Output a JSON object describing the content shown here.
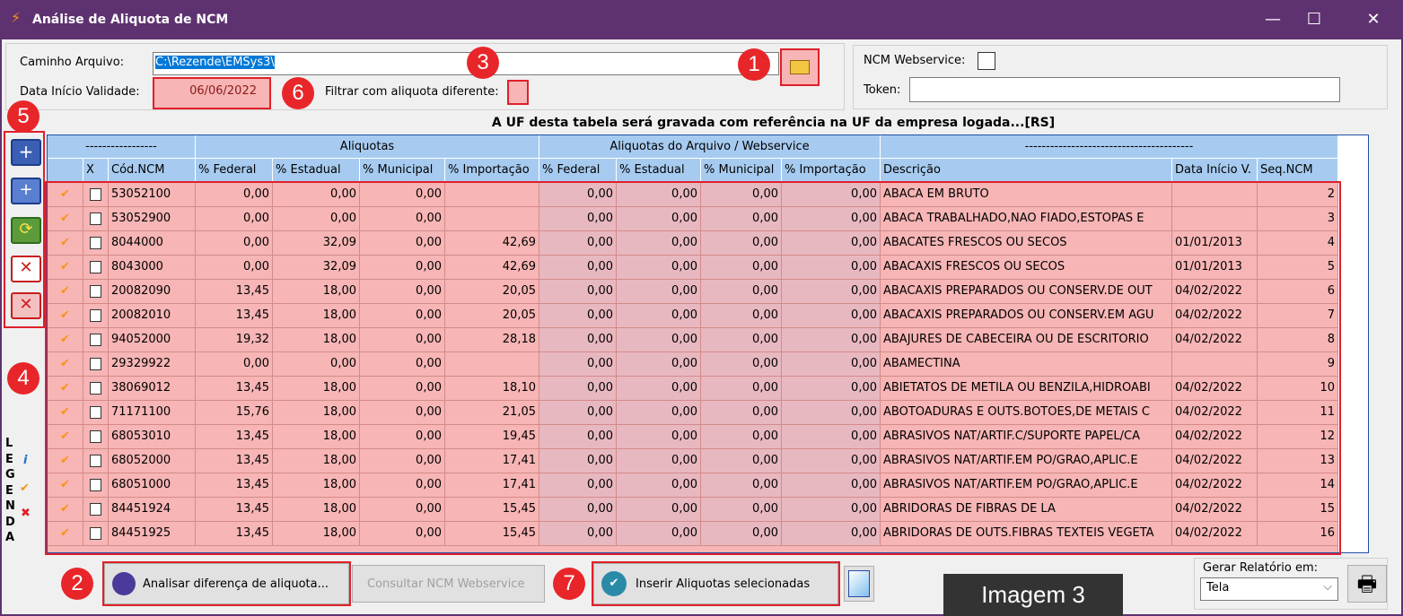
{
  "window": {
    "title": "Análise de Aliquota de NCM",
    "minimize": "—",
    "maximize": "☐",
    "close": "✕"
  },
  "form": {
    "path_label": "Caminho Arquivo:",
    "path_value": "C:\\Rezende\\EMSys3\\",
    "validity_label": "Data Início Validade:",
    "validity_value": "06/06/2022",
    "filter_label": "Filtrar com aliquota diferente:",
    "ncm_ws_label": "NCM Webservice:",
    "token_label": "Token:",
    "token_value": ""
  },
  "notice": "A UF desta tabela será gravada com referência na UF da empresa logada...[RS]",
  "grid": {
    "group_headers": [
      "-----------------",
      "Aliquotas",
      "Aliquotas do Arquivo / Webservice",
      "----------------------------------------"
    ],
    "columns": [
      "",
      "X",
      "Cód.NCM",
      "% Federal",
      "% Estadual",
      "% Municipal",
      "% Importação",
      "% Federal",
      "% Estadual",
      "% Municipal",
      "% Importação",
      "Descrição",
      "Data Início V.",
      "Seq.NCM"
    ],
    "rows": [
      [
        "53052100",
        "0,00",
        "0,00",
        "0,00",
        "",
        "0,00",
        "0,00",
        "0,00",
        "0,00",
        "ABACA EM BRUTO",
        "",
        "2"
      ],
      [
        "53052900",
        "0,00",
        "0,00",
        "0,00",
        "",
        "0,00",
        "0,00",
        "0,00",
        "0,00",
        "ABACA TRABALHADO,NAO FIADO,ESTOPAS E",
        "",
        "3"
      ],
      [
        "8044000",
        "0,00",
        "32,09",
        "0,00",
        "42,69",
        "0,00",
        "0,00",
        "0,00",
        "0,00",
        "ABACATES FRESCOS OU SECOS",
        "01/01/2013",
        "4"
      ],
      [
        "8043000",
        "0,00",
        "32,09",
        "0,00",
        "42,69",
        "0,00",
        "0,00",
        "0,00",
        "0,00",
        "ABACAXIS FRESCOS OU SECOS",
        "01/01/2013",
        "5"
      ],
      [
        "20082090",
        "13,45",
        "18,00",
        "0,00",
        "20,05",
        "0,00",
        "0,00",
        "0,00",
        "0,00",
        "ABACAXIS PREPARADOS OU CONSERV.DE OUT",
        "04/02/2022",
        "6"
      ],
      [
        "20082010",
        "13,45",
        "18,00",
        "0,00",
        "20,05",
        "0,00",
        "0,00",
        "0,00",
        "0,00",
        "ABACAXIS PREPARADOS OU CONSERV.EM AGU",
        "04/02/2022",
        "7"
      ],
      [
        "94052000",
        "19,32",
        "18,00",
        "0,00",
        "28,18",
        "0,00",
        "0,00",
        "0,00",
        "0,00",
        "ABAJURES DE CABECEIRA OU DE ESCRITORIO",
        "04/02/2022",
        "8"
      ],
      [
        "29329922",
        "0,00",
        "0,00",
        "0,00",
        "",
        "0,00",
        "0,00",
        "0,00",
        "0,00",
        "ABAMECTINA",
        "",
        "9"
      ],
      [
        "38069012",
        "13,45",
        "18,00",
        "0,00",
        "18,10",
        "0,00",
        "0,00",
        "0,00",
        "0,00",
        "ABIETATOS DE METILA OU BENZILA,HIDROABI",
        "04/02/2022",
        "10"
      ],
      [
        "71171100",
        "15,76",
        "18,00",
        "0,00",
        "21,05",
        "0,00",
        "0,00",
        "0,00",
        "0,00",
        "ABOTOADURAS E OUTS.BOTOES,DE METAIS C",
        "04/02/2022",
        "11"
      ],
      [
        "68053010",
        "13,45",
        "18,00",
        "0,00",
        "19,45",
        "0,00",
        "0,00",
        "0,00",
        "0,00",
        "ABRASIVOS NAT/ARTIF.C/SUPORTE PAPEL/CA",
        "04/02/2022",
        "12"
      ],
      [
        "68052000",
        "13,45",
        "18,00",
        "0,00",
        "17,41",
        "0,00",
        "0,00",
        "0,00",
        "0,00",
        "ABRASIVOS NAT/ARTIF.EM PO/GRAO,APLIC.E",
        "04/02/2022",
        "13"
      ],
      [
        "68051000",
        "13,45",
        "18,00",
        "0,00",
        "17,41",
        "0,00",
        "0,00",
        "0,00",
        "0,00",
        "ABRASIVOS NAT/ARTIF.EM PO/GRAO,APLIC.E",
        "04/02/2022",
        "14"
      ],
      [
        "84451924",
        "13,45",
        "18,00",
        "0,00",
        "15,45",
        "0,00",
        "0,00",
        "0,00",
        "0,00",
        "ABRIDORAS DE FIBRAS DE LA",
        "04/02/2022",
        "15"
      ],
      [
        "84451925",
        "13,45",
        "18,00",
        "0,00",
        "15,45",
        "0,00",
        "0,00",
        "0,00",
        "0,00",
        "ABRIDORAS DE OUTS.FIBRAS TEXTEIS VEGETA",
        "04/02/2022",
        "16"
      ]
    ]
  },
  "legend": {
    "letters": [
      "L",
      "E",
      "G",
      "E",
      "N",
      "D",
      "A"
    ]
  },
  "buttons": {
    "analyze": "Analisar diferença de aliquota...",
    "consult": "Consultar NCM Webservice",
    "insert": "Inserir Aliquotas selecionadas"
  },
  "report": {
    "label": "Gerar Relatório em:",
    "value": "Tela"
  },
  "badges": [
    "1",
    "2",
    "3",
    "4",
    "5",
    "6",
    "7"
  ],
  "caption": "Imagem 3",
  "colors": {
    "titlebar": "#5e3270",
    "highlight": "#e8262a",
    "header": "#a7cbf0",
    "row": "#f7b5b5"
  }
}
